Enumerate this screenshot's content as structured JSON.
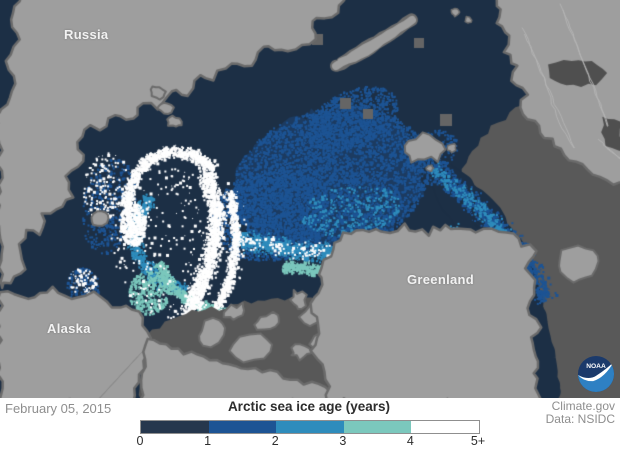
{
  "map": {
    "labels": {
      "russia": "Russia",
      "alaska": "Alaska",
      "greenland": "Greenland"
    },
    "colors": {
      "ocean_basin": "#1c2f45",
      "ocean_outside": "#595959",
      "channel": "#585858",
      "land": "#9e9e9e",
      "coast": "#6b6b6b",
      "border_line": "#b6b6b6",
      "inland_sea": "#4f4f4f",
      "data_gap": "#656565",
      "label_text": "#f2f2f2"
    },
    "noaa_logo": {
      "text": "NOAA",
      "top_color": "#1b3a6b",
      "bottom_color": "#2e80c3"
    }
  },
  "footer": {
    "date": "February 05, 2015",
    "credit_line1": "Climate.gov",
    "credit_line2": "Data: NSIDC",
    "legend": {
      "title": "Arctic sea ice age (years)",
      "ticks": [
        "0",
        "1",
        "2",
        "3",
        "4",
        "5+"
      ],
      "palette": [
        "#26374d",
        "#1d5494",
        "#2e8cbc",
        "#7bc8bd",
        "#ffffff"
      ],
      "border_color": "#8f8f8f"
    }
  }
}
